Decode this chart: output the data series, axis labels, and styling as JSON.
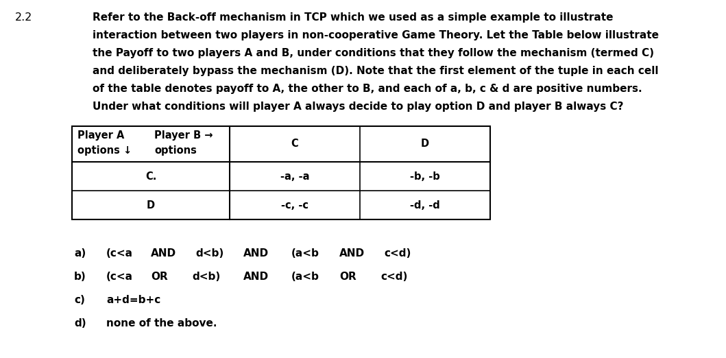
{
  "question_number": "2.2",
  "paragraph_lines": [
    "Refer to the Back-off mechanism in TCP which we used as a simple example to illustrate",
    "interaction between two players in non-cooperative Game Theory. Let the Table below illustrate",
    "the Payoff to two players A and B, under conditions that they follow the mechanism (termed C)",
    "and deliberately bypass the mechanism (D). Note that the first element of the tuple in each cell",
    "of the table denotes payoff to A, the other to B, and each of a, b, c & d are positive numbers.",
    "Under what conditions will player A always decide to play option D and player B always C?"
  ],
  "table_header_r0c0_line1": "Player A",
  "table_header_r0c0_line2": "options ↓",
  "table_header_r0c1_line1": "Player B →",
  "table_header_r0c1_line2": "options",
  "table_header_c": "C",
  "table_header_d": "D",
  "table_r1c0": "C.",
  "table_r1c1": "-a, -a",
  "table_r1c2": "-b, -b",
  "table_r2c0": "D",
  "table_r2c1": "-c, -c",
  "table_r2c2": "-d, -d",
  "opt_a_label": "a)",
  "opt_a_text": "(c<a  AND   d<b)  AND   (a<b  AND   c<d)",
  "opt_b_label": "b)",
  "opt_b_text": "(c<a  OR    d<b)  AND   (a<b  OR    c<d)",
  "opt_c_label": "c)",
  "opt_c_text": "a+d=b+c",
  "opt_d_label": "d)",
  "opt_d_text": "none of the above.",
  "bg_color": "#ffffff",
  "text_color": "#000000"
}
